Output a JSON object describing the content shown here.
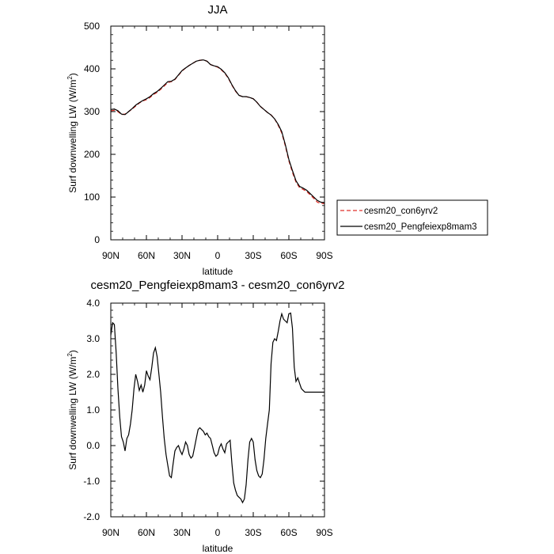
{
  "chart_data": [
    {
      "type": "line",
      "title": "JJA",
      "xlabel": "latitude",
      "ylabel_main": "Surf downwelling LW (W/m",
      "ylabel_sup": "2",
      "ylabel_close": ")",
      "xlim": [
        90,
        -90
      ],
      "ylim": [
        0,
        500
      ],
      "xticks": [
        90,
        60,
        30,
        0,
        -30,
        -60,
        -90
      ],
      "xtick_labels": [
        "90N",
        "60N",
        "30N",
        "0",
        "30S",
        "60S",
        "90S"
      ],
      "yticks": [
        0,
        100,
        200,
        300,
        400,
        500
      ],
      "ytick_labels": [
        "0",
        "100",
        "200",
        "300",
        "400",
        "500"
      ],
      "grid": false,
      "legend_position": "right",
      "series": [
        {
          "name": "cesm20_con6yrv2",
          "color": "#e0322a",
          "dash": "dashed",
          "x": [
            90,
            87,
            84,
            81,
            78,
            75,
            72,
            69,
            66,
            63,
            60,
            57,
            54,
            51,
            48,
            45,
            42,
            39,
            36,
            33,
            30,
            27,
            24,
            21,
            18,
            15,
            12,
            9,
            6,
            3,
            0,
            -3,
            -6,
            -9,
            -12,
            -15,
            -18,
            -21,
            -24,
            -27,
            -30,
            -33,
            -36,
            -39,
            -42,
            -45,
            -48,
            -51,
            -54,
            -57,
            -60,
            -63,
            -66,
            -69,
            -72,
            -75,
            -78,
            -81,
            -84,
            -87,
            -90
          ],
          "y": [
            302,
            303,
            300,
            293,
            294,
            300,
            306,
            313,
            320,
            325,
            328,
            333,
            340,
            345,
            352,
            360,
            368,
            370,
            375,
            385,
            395,
            402,
            408,
            413,
            418,
            420,
            421,
            418,
            410,
            407,
            404,
            398,
            390,
            378,
            362,
            348,
            338,
            335,
            335,
            333,
            330,
            322,
            312,
            305,
            298,
            292,
            283,
            268,
            250,
            220,
            185,
            158,
            135,
            122,
            118,
            113,
            105,
            97,
            88,
            85,
            85
          ]
        },
        {
          "name": "cesm20_Pengfeiexp8mam3",
          "color": "#000000",
          "dash": "solid",
          "x": [
            90,
            87,
            84,
            81,
            78,
            75,
            72,
            69,
            66,
            63,
            60,
            57,
            54,
            51,
            48,
            45,
            42,
            39,
            36,
            33,
            30,
            27,
            24,
            21,
            18,
            15,
            12,
            9,
            6,
            3,
            0,
            -3,
            -6,
            -9,
            -12,
            -15,
            -18,
            -21,
            -24,
            -27,
            -30,
            -33,
            -36,
            -39,
            -42,
            -45,
            -48,
            -51,
            -54,
            -57,
            -60,
            -63,
            -66,
            -69,
            -72,
            -75,
            -78,
            -81,
            -84,
            -87,
            -90
          ],
          "y": [
            305,
            306,
            302,
            294,
            293,
            300,
            307,
            315,
            321,
            326,
            330,
            335,
            342,
            347,
            354,
            362,
            370,
            371,
            376,
            386,
            396,
            402,
            408,
            413,
            418,
            420,
            421,
            418,
            410,
            407,
            405,
            399,
            391,
            379,
            363,
            349,
            338,
            335,
            335,
            333,
            330,
            322,
            312,
            305,
            298,
            292,
            283,
            270,
            253,
            223,
            188,
            162,
            138,
            125,
            121,
            116,
            108,
            100,
            92,
            88,
            87
          ]
        }
      ]
    },
    {
      "type": "line",
      "title": "cesm20_Pengfeiexp8mam3 - cesm20_con6yrv2",
      "xlabel": "latitude",
      "ylabel_main": "Surf downwelling LW (W/m",
      "ylabel_sup": "2",
      "ylabel_close": ")",
      "xlim": [
        90,
        -90
      ],
      "ylim": [
        -2.0,
        4.0
      ],
      "xticks": [
        90,
        60,
        30,
        0,
        -30,
        -60,
        -90
      ],
      "xtick_labels": [
        "90N",
        "60N",
        "30N",
        "0",
        "30S",
        "60S",
        "90S"
      ],
      "yticks": [
        -2.0,
        -1.0,
        0.0,
        1.0,
        2.0,
        3.0,
        4.0
      ],
      "ytick_labels": [
        "-2.0",
        "-1.0",
        "0.0",
        "1.0",
        "2.0",
        "3.0",
        "4.0"
      ],
      "grid": false,
      "series": [
        {
          "color": "#000000",
          "dash": "solid",
          "x": [
            90,
            88.5,
            87,
            85.5,
            84,
            82.5,
            81,
            79.5,
            78,
            76.5,
            75,
            73.5,
            72,
            70.5,
            69,
            67.5,
            66,
            64.5,
            63,
            61.5,
            60,
            58.5,
            57,
            55.5,
            54,
            52.5,
            51,
            49.5,
            48,
            46.5,
            45,
            43.5,
            42,
            40.5,
            39,
            37.5,
            36,
            34.5,
            33,
            31.5,
            30,
            28.5,
            27,
            25.5,
            24,
            22.5,
            21,
            19.5,
            18,
            16.5,
            15,
            13.5,
            12,
            10.5,
            9,
            7.5,
            6,
            4.5,
            3,
            1.5,
            0,
            -1.5,
            -3,
            -4.5,
            -6,
            -7.5,
            -9,
            -10.5,
            -12,
            -13.5,
            -15,
            -16.5,
            -18,
            -19.5,
            -21,
            -22.5,
            -24,
            -25.5,
            -27,
            -28.5,
            -30,
            -31.5,
            -33,
            -34.5,
            -36,
            -37.5,
            -39,
            -40.5,
            -42,
            -43.5,
            -45,
            -46.5,
            -48,
            -49.5,
            -51,
            -52.5,
            -54,
            -55.5,
            -57,
            -58.5,
            -60,
            -61.5,
            -63,
            -64.5,
            -66,
            -67.5,
            -69,
            -70.5,
            -72,
            -73.5,
            -75,
            -76.5,
            -78,
            -79.5,
            -81,
            -82.5,
            -84,
            -85.5,
            -87,
            -88.5,
            -90
          ],
          "y": [
            3.1,
            3.45,
            3.4,
            2.6,
            1.6,
            0.8,
            0.25,
            0.1,
            -0.15,
            0.2,
            0.3,
            0.6,
            1.0,
            1.6,
            2.0,
            1.8,
            1.55,
            1.7,
            1.5,
            1.7,
            2.1,
            1.95,
            1.85,
            2.2,
            2.6,
            2.75,
            2.5,
            2.0,
            1.5,
            0.8,
            0.2,
            -0.25,
            -0.55,
            -0.85,
            -0.9,
            -0.5,
            -0.15,
            -0.05,
            0.0,
            -0.15,
            -0.25,
            -0.1,
            0.1,
            0.0,
            -0.25,
            -0.35,
            -0.3,
            -0.05,
            0.2,
            0.45,
            0.5,
            0.45,
            0.4,
            0.3,
            0.35,
            0.25,
            0.2,
            0.0,
            -0.2,
            -0.3,
            -0.25,
            -0.05,
            0.05,
            -0.1,
            -0.2,
            0.05,
            0.1,
            0.15,
            -0.5,
            -1.05,
            -1.25,
            -1.4,
            -1.45,
            -1.5,
            -1.6,
            -1.5,
            -1.1,
            -0.4,
            0.1,
            0.2,
            0.1,
            -0.4,
            -0.7,
            -0.85,
            -0.9,
            -0.8,
            -0.4,
            0.2,
            0.6,
            1.0,
            2.3,
            2.9,
            3.0,
            2.95,
            3.2,
            3.5,
            3.7,
            3.55,
            3.5,
            3.45,
            3.7,
            3.72,
            3.3,
            2.2,
            1.8,
            1.9,
            1.75,
            1.6,
            1.55,
            1.5,
            1.5,
            1.5,
            1.5,
            1.5,
            1.5,
            1.5,
            1.5,
            1.5,
            1.5,
            1.5,
            1.5
          ]
        }
      ]
    }
  ]
}
